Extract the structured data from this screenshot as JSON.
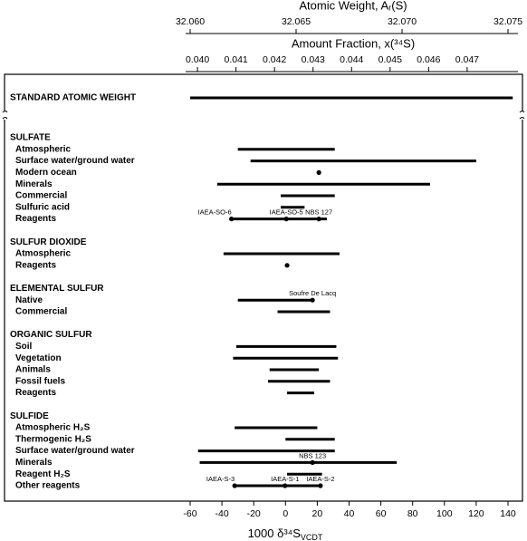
{
  "chart_data": {
    "type": "range",
    "top_axes": [
      {
        "label": "Atomic Weight, Aᵣ(S)",
        "lim": [
          32.06,
          32.075
        ],
        "ticks": [
          {
            "value": 32.06,
            "label": "32.060"
          },
          32.065,
          {
            "value": 32.07,
            "label": "32.070"
          },
          32.075
        ]
      },
      {
        "label": "Amount Fraction, x(³⁴S)",
        "lim": [
          0.03981,
          0.04806
        ],
        "ticks": [
          {
            "value": 0.04,
            "label": "0.040"
          },
          0.041,
          0.042,
          0.043,
          0.044,
          0.045,
          0.046,
          0.047
        ]
      }
    ],
    "x_label": {
      "main": "1000 δ³⁴S",
      "sub": "VCDT"
    },
    "xlim": [
      -60,
      140
    ],
    "xticks": [
      -60,
      -40,
      -20,
      0,
      20,
      40,
      60,
      80,
      100,
      120,
      140
    ],
    "color": "#000000",
    "standard": {
      "name": "STANDARD ATOMIC WEIGHT",
      "range": [
        -60,
        143
      ]
    },
    "groups": [
      {
        "name": "SULFATE",
        "rows": [
          {
            "name": "Atmospheric",
            "range": [
              -30,
              31
            ]
          },
          {
            "name": "Surface water/ground water",
            "range": [
              -22,
              120
            ]
          },
          {
            "name": "Modern ocean",
            "points": [
              21
            ]
          },
          {
            "name": "Minerals",
            "range": [
              -43,
              91
            ]
          },
          {
            "name": "Commercial",
            "range": [
              -3,
              31
            ]
          },
          {
            "name": "Sulfuric acid",
            "range": [
              -3,
              12
            ]
          },
          {
            "name": "Reagents",
            "range": [
              -34,
              26
            ],
            "points": [
              -34,
              0.5,
              21
            ],
            "point_labels": [
              "IAEA-SO-6",
              "IAEA-SO-5",
              "NBS 127"
            ]
          }
        ]
      },
      {
        "name": "SULFUR DIOXIDE",
        "rows": [
          {
            "name": "Atmospheric",
            "range": [
              -39,
              34
            ]
          },
          {
            "name": "Reagents",
            "points": [
              1
            ]
          }
        ]
      },
      {
        "name": "ELEMENTAL SULFUR",
        "rows": [
          {
            "name": "Native",
            "range": [
              -30,
              17
            ],
            "points": [
              17
            ],
            "point_labels": [
              "Soufre De Lacq"
            ]
          },
          {
            "name": "Commercial",
            "range": [
              -5,
              28
            ]
          }
        ]
      },
      {
        "name": "ORGANIC SULFUR",
        "rows": [
          {
            "name": "Soil",
            "range": [
              -31,
              32
            ]
          },
          {
            "name": "Vegetation",
            "range": [
              -33,
              33
            ]
          },
          {
            "name": "Animals",
            "range": [
              -10,
              21
            ]
          },
          {
            "name": "Fossil fuels",
            "range": [
              -11,
              28
            ]
          },
          {
            "name": "Reagents",
            "range": [
              1,
              18
            ]
          }
        ]
      },
      {
        "name": "SULFIDE",
        "rows": [
          {
            "name": "Atmospheric H₂S",
            "range": [
              -32,
              20
            ]
          },
          {
            "name": "Thermogenic H₂S",
            "range": [
              0,
              31
            ]
          },
          {
            "name": "Surface water/ground water",
            "range": [
              -55,
              31
            ]
          },
          {
            "name": "Minerals",
            "range": [
              -54,
              70
            ],
            "points": [
              17
            ],
            "point_labels": [
              "NBS 123"
            ]
          },
          {
            "name": "Reagent H₂S",
            "range": [
              1,
              23
            ]
          },
          {
            "name": "Other reagents",
            "range": [
              -32,
              22
            ],
            "points": [
              -32,
              -0.3,
              22
            ],
            "point_labels": [
              "IAEA-S-3",
              "IAEA-S-1",
              "IAEA-S-2"
            ]
          }
        ]
      }
    ]
  }
}
